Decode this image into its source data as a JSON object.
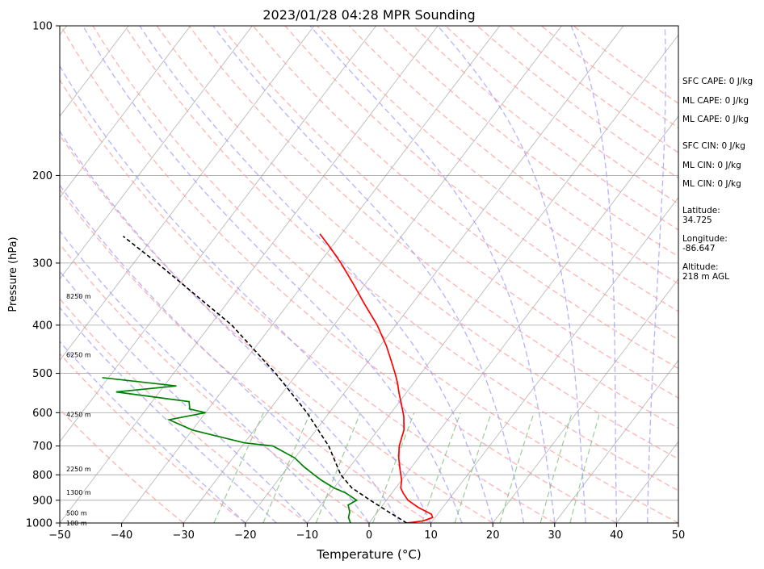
{
  "chart_data": {
    "type": "line",
    "title": "2023/01/28 04:28 MPR Sounding",
    "xlabel": "Temperature (°C)",
    "ylabel": "Pressure (hPa)",
    "xlim": [
      -50,
      50
    ],
    "ylim": [
      1000,
      100
    ],
    "y_scale": "log",
    "skew": true,
    "x_ticks": [
      -50,
      -40,
      -30,
      -20,
      -10,
      0,
      10,
      20,
      30,
      40,
      50
    ],
    "x_tick_labels": [
      "−50",
      "−40",
      "−30",
      "−20",
      "−10",
      "0",
      "10",
      "20",
      "30",
      "40",
      "50"
    ],
    "y_ticks": [
      1000,
      900,
      800,
      700,
      600,
      500,
      400,
      300,
      200,
      100
    ],
    "y_tick_labels": [
      "1000",
      "900",
      "800",
      "700",
      "600",
      "500",
      "400",
      "300",
      "200",
      "100"
    ],
    "grid": true,
    "series": [
      {
        "role": "temperature",
        "color": "#ff0000",
        "points": [
          [
            1000,
            6.1
          ],
          [
            990,
            8.5
          ],
          [
            975,
            9.6
          ],
          [
            960,
            9.0
          ],
          [
            930,
            6.0
          ],
          [
            900,
            3.5
          ],
          [
            870,
            1.8
          ],
          [
            850,
            0.8
          ],
          [
            820,
            0.0
          ],
          [
            780,
            -1.6
          ],
          [
            740,
            -3.2
          ],
          [
            700,
            -4.6
          ],
          [
            650,
            -5.8
          ],
          [
            610,
            -7.5
          ],
          [
            580,
            -9.2
          ],
          [
            550,
            -11.0
          ],
          [
            520,
            -12.8
          ],
          [
            500,
            -14.2
          ],
          [
            470,
            -16.5
          ],
          [
            440,
            -19.0
          ],
          [
            400,
            -23.0
          ],
          [
            360,
            -28.0
          ],
          [
            330,
            -32.0
          ],
          [
            300,
            -36.5
          ],
          [
            280,
            -40.0
          ],
          [
            262,
            -43.5
          ]
        ]
      },
      {
        "role": "dewpoint",
        "color": "#008000",
        "points": [
          [
            1000,
            -3.0
          ],
          [
            975,
            -4.0
          ],
          [
            950,
            -4.5
          ],
          [
            920,
            -5.6
          ],
          [
            900,
            -4.8
          ],
          [
            870,
            -7.5
          ],
          [
            850,
            -10.0
          ],
          [
            820,
            -13.0
          ],
          [
            800,
            -14.8
          ],
          [
            770,
            -17.5
          ],
          [
            740,
            -20.0
          ],
          [
            700,
            -25.0
          ],
          [
            690,
            -30.0
          ],
          [
            650,
            -40.0
          ],
          [
            620,
            -45.0
          ],
          [
            600,
            -40.0
          ],
          [
            590,
            -43.0
          ],
          [
            570,
            -44.0
          ],
          [
            545,
            -57.0
          ],
          [
            530,
            -48.0
          ],
          [
            510,
            -61.0
          ]
        ]
      },
      {
        "role": "parcel",
        "color": "#000000",
        "points": [
          [
            1000,
            6.1
          ],
          [
            950,
            1.8
          ],
          [
            900,
            -2.6
          ],
          [
            850,
            -7.1
          ],
          [
            800,
            -10.5
          ],
          [
            700,
            -16.0
          ],
          [
            600,
            -23.6
          ],
          [
            500,
            -33.5
          ],
          [
            400,
            -46.5
          ],
          [
            300,
            -66.2
          ],
          [
            265,
            -75.0
          ]
        ]
      }
    ],
    "height_markers": [
      {
        "label": "100 m",
        "pressure": 1000
      },
      {
        "label": "500 m",
        "pressure": 955
      },
      {
        "label": "1300 m",
        "pressure": 868
      },
      {
        "label": "2250 m",
        "pressure": 778
      },
      {
        "label": "4250 m",
        "pressure": 605
      },
      {
        "label": "6250 m",
        "pressure": 459
      },
      {
        "label": "8250 m",
        "pressure": 350
      }
    ]
  },
  "side_info": {
    "sfc_cape": "SFC CAPE: 0 J/kg",
    "ml_cape_1": "ML CAPE: 0 J/kg",
    "ml_cape_2": "ML CAPE: 0 J/kg",
    "sfc_cin": "SFC CIN: 0 J/kg",
    "ml_cin_1": "ML CIN: 0 J/kg",
    "ml_cin_2": "ML CIN: 0 J/kg",
    "latitude_label": "Latitude:",
    "latitude_value": "34.725",
    "longitude_label": "Longitude:",
    "longitude_value": "-86.647",
    "altitude_label": "Altitude:",
    "altitude_value": "218 m AGL"
  },
  "colors": {
    "isotherm": "#808080",
    "isobar": "#808080",
    "dry_adiabat": "#ff9999",
    "moist_adiabat": "#9999ff",
    "mixing_ratio": "#80c080"
  }
}
